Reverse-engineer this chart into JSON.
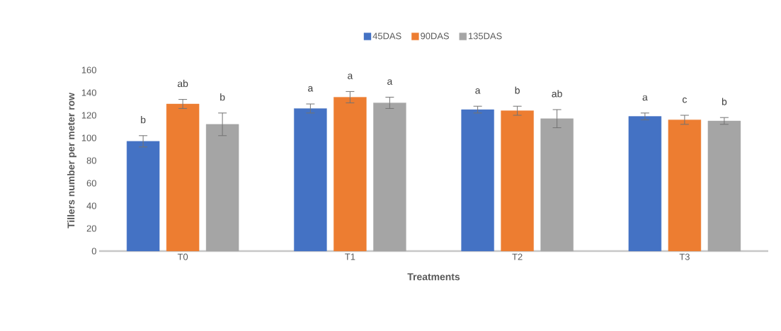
{
  "chart_data": {
    "type": "bar",
    "xlabel": "Treatments",
    "ylabel": "Tillers number per meter row",
    "categories": [
      "T0",
      "T1",
      "T2",
      "T3"
    ],
    "series": [
      {
        "name": "45DAS",
        "color": "#4472c4",
        "values": [
          97,
          126,
          125,
          119
        ],
        "errors": [
          5,
          4,
          3,
          3
        ],
        "value_labels": [
          "b",
          "a",
          "a",
          "a"
        ]
      },
      {
        "name": "90DAS",
        "color": "#ed7d31",
        "values": [
          130,
          136,
          124,
          116
        ],
        "errors": [
          4,
          5,
          4,
          4
        ],
        "value_labels": [
          "ab",
          "a",
          "b",
          "c"
        ]
      },
      {
        "name": "135DAS",
        "color": "#a5a5a5",
        "values": [
          112,
          131,
          117,
          115
        ],
        "errors": [
          10,
          5,
          8,
          3
        ],
        "value_labels": [
          "b",
          "a",
          "ab",
          "b"
        ]
      }
    ],
    "ylim": [
      0,
      160
    ],
    "yticks": [
      0,
      20,
      40,
      60,
      80,
      100,
      120,
      140,
      160
    ],
    "grid": false,
    "legend": "top"
  }
}
